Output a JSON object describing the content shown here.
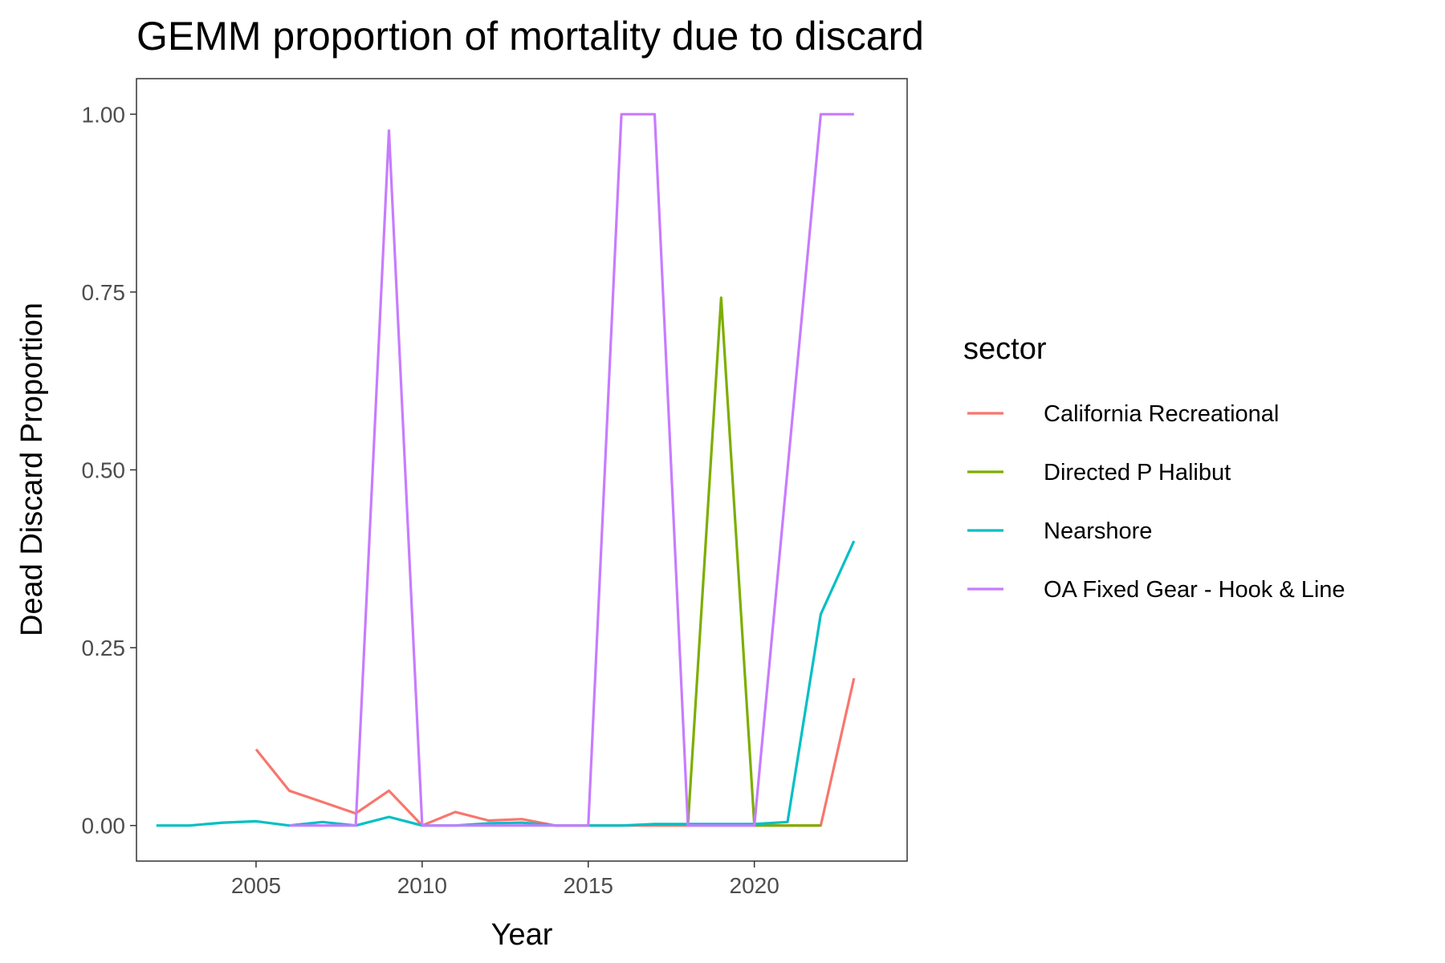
{
  "chart_data": {
    "type": "line",
    "title": "GEMM proportion of mortality due to discard",
    "xlabel": "Year",
    "ylabel": "Dead Discard Proportion",
    "xlim": [
      2001.4,
      2024.6
    ],
    "ylim": [
      -0.05,
      1.05
    ],
    "x_ticks": [
      2005,
      2010,
      2015,
      2020
    ],
    "x_tick_labels": [
      "2005",
      "2010",
      "2015",
      "2020"
    ],
    "y_ticks": [
      0,
      0.25,
      0.5,
      0.75,
      1.0
    ],
    "y_tick_labels": [
      "0.00",
      "0.25",
      "0.50",
      "0.75",
      "1.00"
    ],
    "grid": false,
    "legend": {
      "title": "sector",
      "position": "right"
    },
    "series": [
      {
        "name": "California Recreational",
        "color": "#F8766D",
        "x": [
          2005,
          2006,
          2007,
          2008,
          2009,
          2010,
          2011,
          2012,
          2013,
          2014,
          2015,
          2016,
          2017,
          2018,
          2019,
          2020,
          2021,
          2022,
          2023
        ],
        "y": [
          0.107,
          0.049,
          0.033,
          0.017,
          0.049,
          0.0,
          0.019,
          0.007,
          0.009,
          0.0,
          0.0,
          0.0,
          0.0,
          0.0,
          0.0,
          0.0,
          0.0,
          0.0,
          0.207
        ]
      },
      {
        "name": "Directed P Halibut",
        "color": "#7CAE00",
        "x": [
          2018,
          2019,
          2020,
          2021,
          2022
        ],
        "y": [
          0.0,
          0.742,
          0.0,
          0.0,
          0.0
        ]
      },
      {
        "name": "Nearshore",
        "color": "#00BFC4",
        "x": [
          2002,
          2003,
          2004,
          2005,
          2006,
          2007,
          2008,
          2009,
          2010,
          2011,
          2012,
          2013,
          2014,
          2015,
          2016,
          2017,
          2018,
          2019,
          2020,
          2021,
          2022,
          2023
        ],
        "y": [
          0.0,
          0.0,
          0.004,
          0.006,
          0.0,
          0.005,
          0.0,
          0.012,
          0.0,
          0.0,
          0.003,
          0.004,
          0.0,
          0.0,
          0.0,
          0.002,
          0.002,
          0.002,
          0.002,
          0.005,
          0.297,
          0.4
        ]
      },
      {
        "name": "OA Fixed Gear - Hook & Line",
        "color": "#C77CFF",
        "x": [
          2006,
          2007,
          2008,
          2009,
          2010,
          2011,
          2012,
          2013,
          2014,
          2015,
          2016,
          2017,
          2018,
          2019,
          2020,
          2021,
          2022,
          2023
        ],
        "y": [
          0.0,
          0.0,
          0.0,
          0.977,
          0.0,
          0.0,
          0.0,
          0.0,
          0.0,
          0.0,
          1.0,
          1.0,
          0.0,
          0.0,
          0.0,
          0.5,
          1.0,
          1.0
        ]
      }
    ]
  }
}
